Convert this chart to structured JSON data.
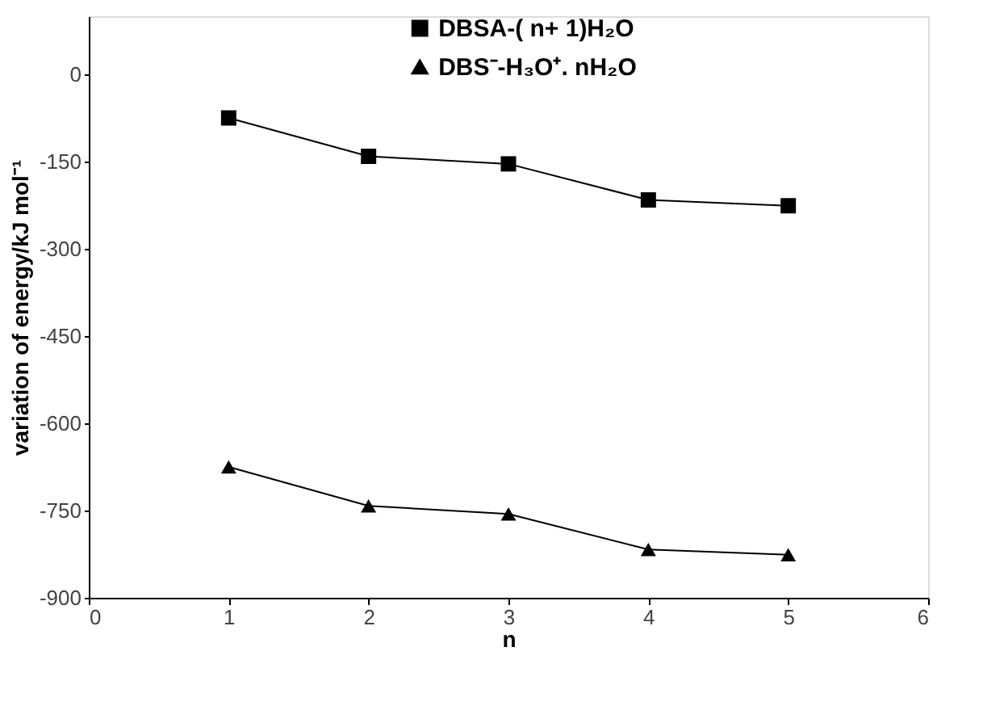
{
  "chart_data": {
    "type": "line",
    "xlabel": "n",
    "ylabel": "variation of energy/kJ mol⁻¹",
    "x": [
      1,
      2,
      3,
      4,
      5
    ],
    "series": [
      {
        "name": "DBSA-( n+ 1)H₂O",
        "color": "#000000",
        "marker": "square",
        "values": [
          -75,
          -141,
          -154,
          -216,
          -226
        ]
      },
      {
        "name": "DBS⁻-H₃O⁺. nH₂O",
        "color": "#000000",
        "marker": "triangle",
        "values": [
          -675,
          -742,
          -756,
          -817,
          -826
        ]
      }
    ],
    "xlim": [
      0,
      6
    ],
    "xticks": [
      0,
      1,
      2,
      3,
      4,
      5,
      6
    ],
    "ylim": [
      -900,
      100
    ],
    "yticks": [
      -900,
      -750,
      -600,
      -450,
      -300,
      -150,
      0
    ],
    "grid": false,
    "legend": "top",
    "line_style": "solid"
  }
}
